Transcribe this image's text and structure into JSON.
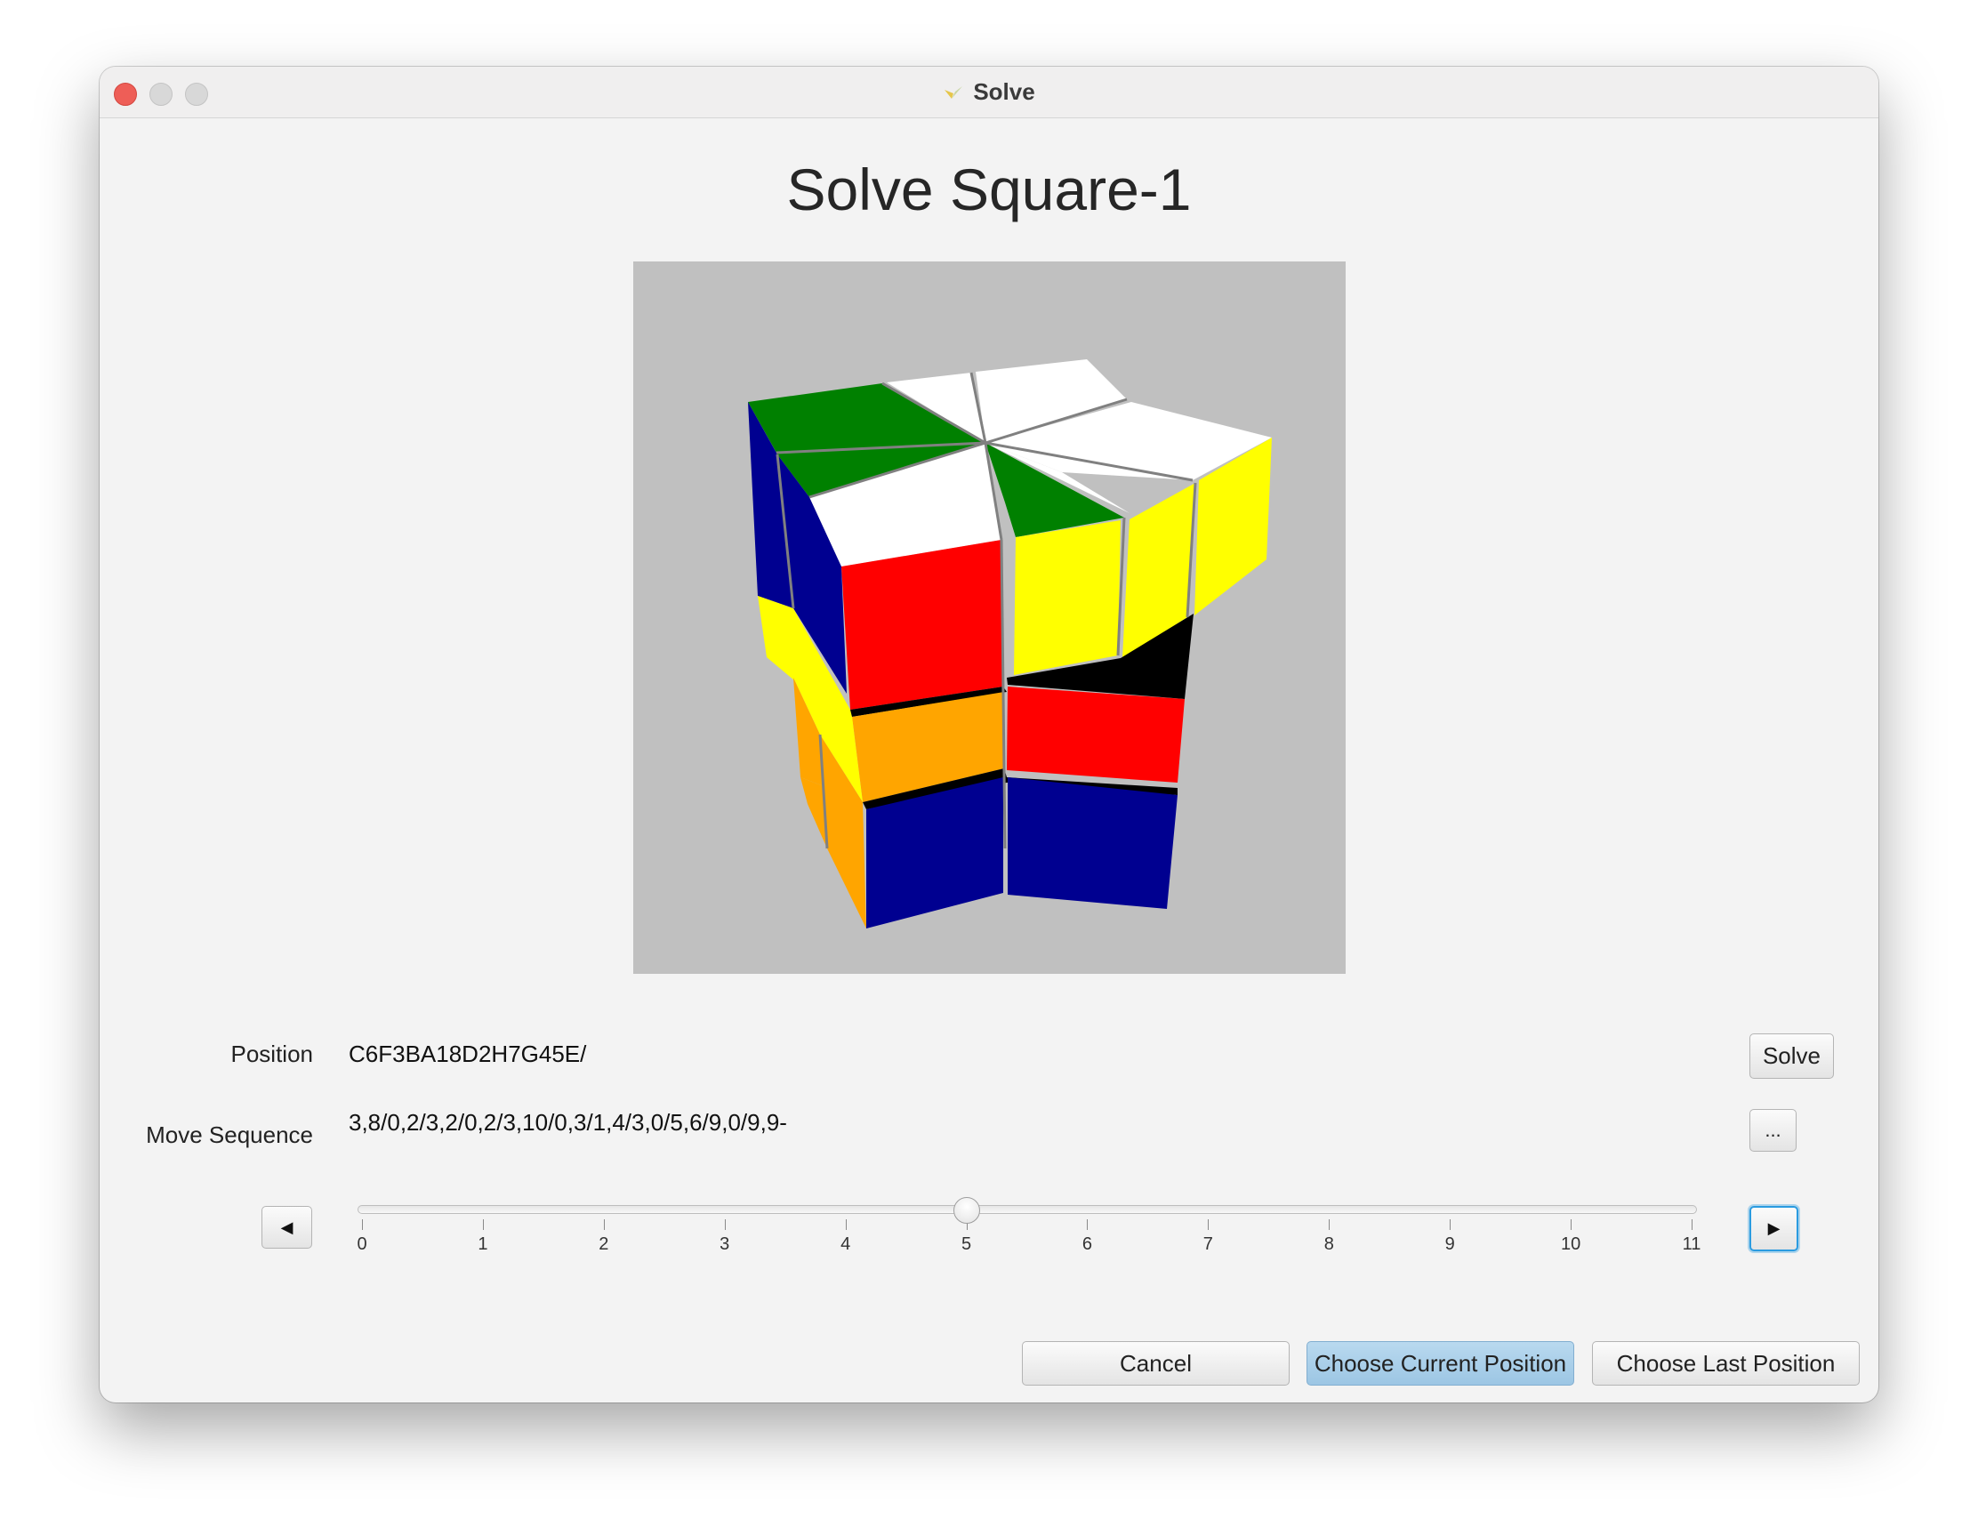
{
  "window": {
    "title": "Solve",
    "heading": "Solve Square-1"
  },
  "form": {
    "position_label": "Position",
    "position_value": "C6F3BA18D2H7G45E/",
    "solve_label": "Solve",
    "move_sequence_label": "Move Sequence",
    "move_sequence_value": "3,8/0,2/3,2/0,2/3,10/0,3/1,4/3,0/5,6/9,0/9,9-",
    "more_label": "..."
  },
  "slider": {
    "min": 0,
    "max": 11,
    "value": 5,
    "ticks": [
      "0",
      "1",
      "2",
      "3",
      "4",
      "5",
      "6",
      "7",
      "8",
      "9",
      "10",
      "11"
    ],
    "prev_icon": "triangle-left-icon",
    "next_icon": "triangle-right-icon"
  },
  "footer": {
    "cancel_label": "Cancel",
    "choose_current_label": "Choose Current Position",
    "choose_last_label": "Choose Last Position"
  },
  "colors": {
    "puzzle_white": "#ffffff",
    "puzzle_green": "#008000",
    "puzzle_blue": "#000090",
    "puzzle_red": "#ff0000",
    "puzzle_yellow": "#ffff00",
    "puzzle_orange": "#ffa500",
    "viewport_bg": "#c0c0c0",
    "default_button": "#a9cfe9"
  }
}
